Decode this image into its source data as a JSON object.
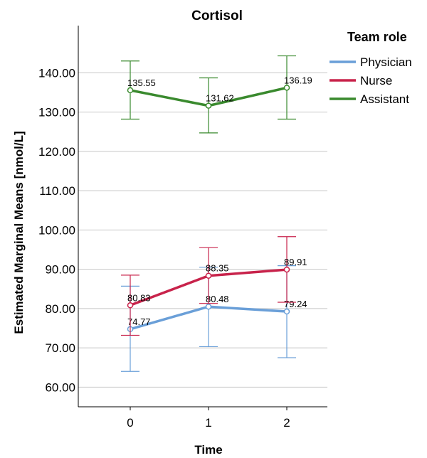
{
  "chart_data": {
    "type": "line",
    "title": "Cortisol",
    "xlabel": "Time",
    "ylabel": "Estimated Marginal Means [nmol/L]",
    "categories": [
      "0",
      "1",
      "2"
    ],
    "ylim": [
      55,
      152
    ],
    "yticks": [
      "60.00",
      "70.00",
      "80.00",
      "90.00",
      "100.00",
      "110.00",
      "120.00",
      "130.00",
      "140.00"
    ],
    "grid": "horizontal",
    "legend": {
      "title": "Team role",
      "position": "top-right"
    },
    "error_bars": true,
    "series": [
      {
        "name": "Physician",
        "color": "#6a9fd8",
        "values": [
          74.77,
          80.48,
          79.24
        ],
        "labels": [
          "74.77",
          "80.48",
          "79.24"
        ],
        "lower": [
          64.0,
          70.3,
          67.5
        ],
        "upper": [
          85.7,
          90.5,
          90.9
        ]
      },
      {
        "name": "Nurse",
        "color": "#c8234b",
        "values": [
          80.83,
          88.35,
          89.91
        ],
        "labels": [
          "80.83",
          "88.35",
          "89.91"
        ],
        "lower": [
          73.2,
          81.3,
          81.6
        ],
        "upper": [
          88.5,
          95.5,
          98.3
        ]
      },
      {
        "name": "Assistant",
        "color": "#3a8a2e",
        "values": [
          135.55,
          131.62,
          136.19
        ],
        "labels": [
          "135.55",
          "131.62",
          "136.19"
        ],
        "lower": [
          128.2,
          124.7,
          128.2
        ],
        "upper": [
          143.0,
          138.7,
          144.3
        ]
      }
    ]
  }
}
